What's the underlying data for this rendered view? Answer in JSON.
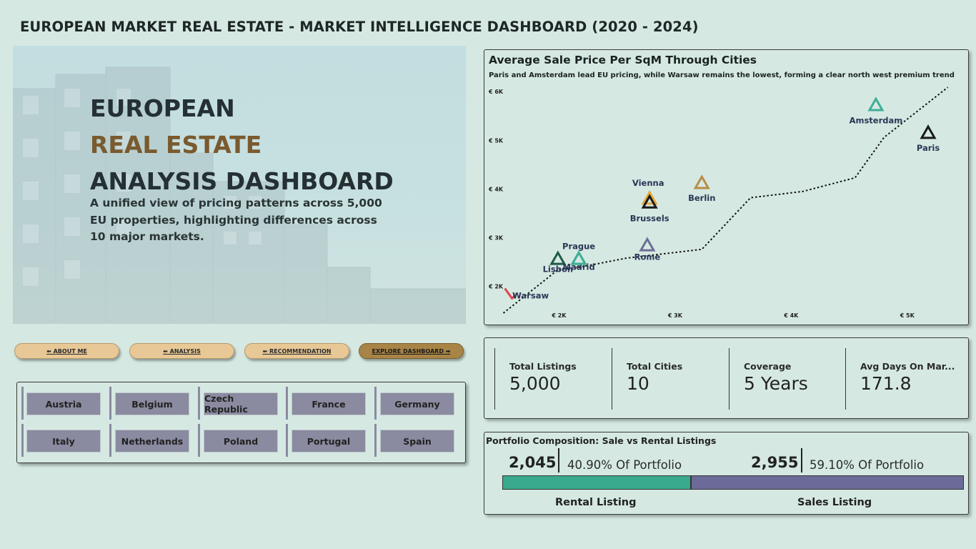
{
  "page": {
    "title": "EUROPEAN MARKET REAL ESTATE - MARKET INTELLIGENCE DASHBOARD (2020 - 2024)"
  },
  "hero": {
    "line1": "EUROPEAN",
    "line2": "REAL ESTATE",
    "line3": "ANALYSIS DASHBOARD",
    "subtitle": "A unified view of pricing patterns across 5,000 EU properties, highlighting differences across 10 major markets."
  },
  "nav": {
    "about": "⬅ ABOUT ME",
    "analysis": "⬅ ANALYSIS",
    "recommendation": "⬅ RECOMMENDATION",
    "explore": "EXPLORE DASHBOARD ➡"
  },
  "countries": [
    "Austria",
    "Belgium",
    "Czech Republic",
    "France",
    "Germany",
    "Italy",
    "Netherlands",
    "Poland",
    "Portugal",
    "Spain"
  ],
  "chart_title": "Average Sale Price Per SqM Through Cities",
  "chart_subtitle": "Paris and Amsterdam lead EU pricing, while Warsaw remains the lowest, forming a clear north west premium trend",
  "chart_data": {
    "type": "scatter",
    "title": "Average Sale Price Per SqM Through Cities",
    "subtitle": "Paris and Amsterdam lead EU pricing, while Warsaw remains the lowest, forming a clear north west premium trend",
    "x_ticks": [
      "€ 2K",
      "€ 3K",
      "€ 4K",
      "€ 5K"
    ],
    "y_ticks": [
      "€ 2K",
      "€ 3K",
      "€ 4K",
      "€ 5K",
      "€ 6K"
    ],
    "xlim": [
      1480,
      5420
    ],
    "ylim": [
      1450,
      6150
    ],
    "points": [
      {
        "name": "Warsaw",
        "x": 1570,
        "y": 1810,
        "color": "#e0454d",
        "marker": "down"
      },
      {
        "name": "Lisbon",
        "x": 1990,
        "y": 2560,
        "color": "#1f5a48",
        "marker": "up"
      },
      {
        "name": "Madrid",
        "x": 2170,
        "y": 2560,
        "color": "#3fae94",
        "marker": "up"
      },
      {
        "name": "Prague",
        "x": 2170,
        "y": 2560,
        "color": "#3fae94",
        "marker": "up"
      },
      {
        "name": "Rome",
        "x": 2760,
        "y": 2840,
        "color": "#6e6f98",
        "marker": "up"
      },
      {
        "name": "Vienna",
        "x": 2780,
        "y": 3800,
        "color": "#e8a83a",
        "marker": "up"
      },
      {
        "name": "Brussels",
        "x": 2780,
        "y": 3720,
        "color": "#1a1a1a",
        "marker": "up"
      },
      {
        "name": "Berlin",
        "x": 3230,
        "y": 4120,
        "color": "#b78d45",
        "marker": "up"
      },
      {
        "name": "Amsterdam",
        "x": 4730,
        "y": 5720,
        "color": "#3fae94",
        "marker": "up"
      },
      {
        "name": "Paris",
        "x": 5180,
        "y": 5150,
        "color": "#1a1a1a",
        "marker": "up"
      }
    ],
    "trend": [
      [
        1520,
        1450
      ],
      [
        1990,
        2340
      ],
      [
        2170,
        2390
      ],
      [
        2580,
        2580
      ],
      [
        3230,
        2760
      ],
      [
        3650,
        3820
      ],
      [
        4100,
        3950
      ],
      [
        4550,
        4230
      ],
      [
        4800,
        5060
      ],
      [
        5350,
        6090
      ]
    ],
    "grid": false
  },
  "kpis": [
    {
      "label": "Total Listings",
      "value": "5,000"
    },
    {
      "label": "Total Cities",
      "value": "10"
    },
    {
      "label": "Coverage",
      "value": "5 Years"
    },
    {
      "label": "Avg Days On Mar...",
      "value": "171.8"
    }
  ],
  "portfolio": {
    "title": "Portfolio Composition: Sale vs Rental Listings",
    "rental_count": "2,045",
    "rental_pct": "40.90% Of Portfolio",
    "sales_count": "2,955",
    "sales_pct": "59.10% Of Portfolio",
    "rental_share": 0.409,
    "rental_label": "Rental Listing",
    "sales_label": "Sales Listing",
    "rental_color": "#3aaa8e",
    "sales_color": "#6c6a98"
  }
}
